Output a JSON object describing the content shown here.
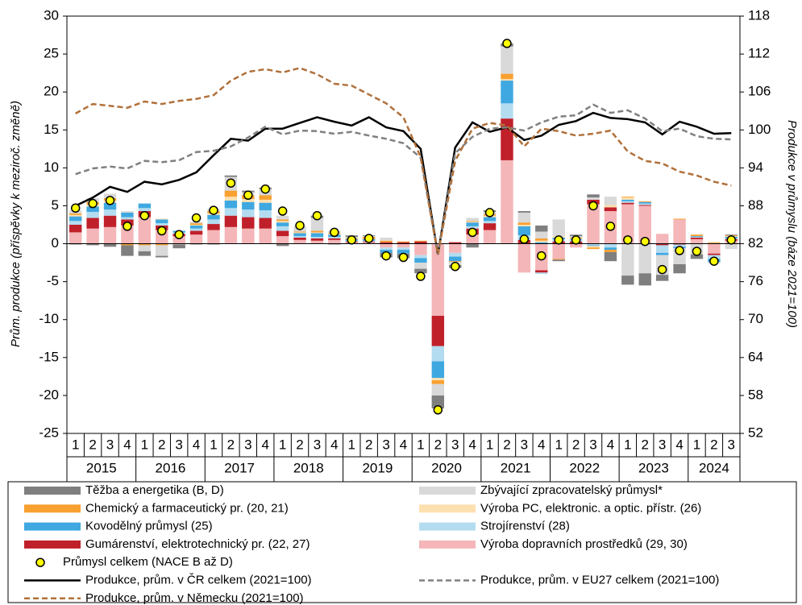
{
  "chart_data": {
    "type": "bar",
    "y_label": "Prům. produkce (příspěvky  k meziroč. změně)",
    "y2_label": "Produkce v průmyslu (báze 2021=100)",
    "categories": [
      "1",
      "2",
      "3",
      "4",
      "1",
      "2",
      "3",
      "4",
      "1",
      "2",
      "3",
      "4",
      "1",
      "2",
      "3",
      "4",
      "1",
      "2",
      "3",
      "4",
      "1",
      "2",
      "3",
      "4",
      "1",
      "2",
      "3",
      "4",
      "1",
      "2",
      "3",
      "4",
      "1",
      "2",
      "3",
      "4",
      "1",
      "2",
      "3"
    ],
    "years": [
      "2015",
      "2016",
      "2017",
      "2018",
      "2019",
      "2020",
      "2021",
      "2022",
      "2023",
      "2024"
    ],
    "ylim": [
      -25,
      30
    ],
    "yticks": [
      -25,
      -20,
      -15,
      -10,
      -5,
      0,
      5,
      10,
      15,
      20,
      25,
      30
    ],
    "y2lim": [
      52,
      118
    ],
    "y2ticks": [
      52,
      58,
      64,
      70,
      76,
      82,
      88,
      94,
      100,
      106,
      112,
      118
    ],
    "series": [
      {
        "name": "Těžba a energetika (B, D)",
        "type": "bar",
        "color": "#7f7f7f",
        "values": [
          -0.1,
          -0.2,
          -0.4,
          -1.4,
          -0.6,
          -0.2,
          -0.5,
          -0.1,
          -0.1,
          0.2,
          0.2,
          0.2,
          -0.3,
          0,
          0.3,
          -0.1,
          0.2,
          0.1,
          -0.6,
          -0.6,
          -0.6,
          -1.7,
          -0.4,
          -0.5,
          0.2,
          0.4,
          0.2,
          0.8,
          -0.2,
          0.2,
          0.4,
          -1.2,
          -1.2,
          -1.6,
          -0.8,
          -1.2,
          -0.6,
          0,
          0.1
        ]
      },
      {
        "name": "Zbývající zpracovatelský průmysl*",
        "type": "bar",
        "color": "#d9d9d9",
        "values": [
          0.4,
          0.5,
          0.6,
          0.2,
          -0.8,
          -1.4,
          -0.1,
          0.2,
          0.3,
          1.8,
          0.4,
          0.8,
          0.5,
          0.7,
          1.7,
          0.3,
          0.2,
          0.1,
          0.4,
          0,
          -0.8,
          -1.5,
          -0.4,
          0.4,
          0.3,
          3.6,
          1.3,
          0.9,
          2.2,
          0.2,
          0.3,
          1.1,
          -4.2,
          -3.9,
          -2.6,
          -2.1,
          -1.4,
          -0.2,
          -0.7
        ]
      },
      {
        "name": "Chemický a farmaceutický pr. (20, 21)",
        "type": "bar",
        "color": "#f8a030",
        "values": [
          0.2,
          0.3,
          0.3,
          -0.2,
          -0.2,
          -0.2,
          0,
          0.2,
          0.3,
          0.8,
          0.5,
          0.6,
          0.2,
          0.1,
          0.2,
          0.1,
          0.1,
          0.3,
          0.2,
          0.1,
          0.1,
          -0.5,
          -0.1,
          0.1,
          0.2,
          0.7,
          0.3,
          0.3,
          -0.1,
          0.1,
          -0.2,
          -0.3,
          0.1,
          0.1,
          0,
          0.1,
          0.2,
          0.1,
          0.1
        ]
      },
      {
        "name": "Výroba PC, elektronic. a optic. přístr. (26)",
        "type": "bar",
        "color": "#fde0b0",
        "values": [
          0.2,
          0.3,
          0.3,
          0,
          0,
          0.1,
          0,
          0.1,
          0.2,
          0.5,
          0.4,
          0.4,
          0.2,
          0.1,
          0.1,
          0.1,
          0,
          0,
          0,
          0,
          0,
          -0.3,
          0,
          0.1,
          0.2,
          0.2,
          0.2,
          0.2,
          0.2,
          0.1,
          -0.2,
          0.3,
          0.3,
          0,
          0,
          0,
          0,
          0.1,
          0.1
        ]
      },
      {
        "name": "Kovodělný průmysl (25)",
        "type": "bar",
        "color": "#3fa8e0",
        "values": [
          0.6,
          0.7,
          0.9,
          0.6,
          0.6,
          0.5,
          0.2,
          0.4,
          0.6,
          1,
          1,
          1,
          0.5,
          0.4,
          0.5,
          0.3,
          0.2,
          0.2,
          -0.4,
          -0.5,
          -0.6,
          -2.2,
          -0.6,
          0.5,
          0.5,
          3,
          1.2,
          0.2,
          0.2,
          0.1,
          -0.1,
          -0.3,
          0.2,
          0.2,
          -0.3,
          -0.2,
          0.1,
          -0.4,
          0.2
        ]
      },
      {
        "name": "Strojírenství (28)",
        "type": "bar",
        "color": "#b4dcf0",
        "values": [
          0.5,
          0.8,
          0.8,
          0.3,
          0.4,
          0.3,
          0.2,
          0.3,
          0.6,
          1,
          1,
          1,
          0.6,
          0.2,
          0.2,
          0.2,
          0.1,
          0.1,
          -0.3,
          -0.3,
          -0.4,
          -2,
          -0.5,
          0.3,
          0.3,
          2,
          0.6,
          -0.2,
          0.3,
          0.2,
          -0.2,
          -0.5,
          0.2,
          0.2,
          -1,
          -0.3,
          0.1,
          -0.5,
          0.1
        ]
      },
      {
        "name": "Gumárenství, elektrotechnický pr. (22, 27)",
        "type": "bar",
        "color": "#c0202a",
        "values": [
          1,
          1.4,
          1.5,
          0.8,
          0.8,
          0.6,
          0.3,
          0.5,
          0.8,
          1.5,
          1.5,
          1.4,
          0.7,
          0.3,
          0.3,
          0.2,
          0.1,
          0.1,
          0.2,
          0.2,
          0.3,
          -4,
          0.2,
          0.8,
          0.9,
          5.5,
          0.5,
          -0.3,
          0.3,
          0.3,
          0.6,
          0.5,
          0.2,
          0.1,
          -0.2,
          -0.1,
          0.2,
          -0.2,
          0.2
        ]
      },
      {
        "name": "Výroba dopravních prostředků (29, 30)",
        "type": "bar",
        "color": "#f4b6b8",
        "values": [
          1.5,
          2,
          2.2,
          2.4,
          3.5,
          1.8,
          1,
          1.2,
          1.8,
          2.2,
          2,
          2,
          1,
          0.5,
          0.4,
          0.5,
          0.2,
          0.2,
          -0.5,
          -0.5,
          -1.5,
          -9.5,
          -1.2,
          1.2,
          1.8,
          11,
          -3.8,
          -3.5,
          -2,
          -0.5,
          5.2,
          4.3,
          5.2,
          5,
          1.3,
          3.2,
          0.6,
          -1.3,
          0.4
        ]
      },
      {
        "name": "Průmysl celkem (NACE B až D)",
        "type": "scatter",
        "color": "#ffff00",
        "values": [
          4.7,
          5.3,
          5.7,
          2.3,
          3.7,
          1.7,
          1.2,
          3.4,
          4.4,
          8,
          6.4,
          7.2,
          4.3,
          2.4,
          3.7,
          1.5,
          0.5,
          0.7,
          -1.6,
          -1.8,
          -4.3,
          -21.9,
          -3,
          1.5,
          4.1,
          26.4,
          0.6,
          -1.6,
          0.5,
          0.5,
          5,
          2.3,
          0.5,
          0.3,
          -3.4,
          -0.9,
          -1,
          -2.3,
          0.5
        ]
      },
      {
        "name": "Produkce, prům. v ČR celkem (2021=100)",
        "type": "line",
        "axis": "y2",
        "color": "#000000",
        "dashed": false,
        "values": [
          88,
          89.3,
          91,
          90.2,
          91.8,
          91.4,
          92.1,
          93.3,
          96,
          98.6,
          98.3,
          100.2,
          100.2,
          101.1,
          102,
          101.3,
          100.7,
          102,
          100.4,
          99.8,
          97,
          80.3,
          97.2,
          101.2,
          99.7,
          100.4,
          98.4,
          99.1,
          100.8,
          101.4,
          102.7,
          101.9,
          101.7,
          101.2,
          99.3,
          101.3,
          100.5,
          99.4,
          99.5
        ]
      },
      {
        "name": "Produkce, prům. v EU27 celkem (2021=100)",
        "type": "line",
        "axis": "y2",
        "color": "#808080",
        "dashed": true,
        "values": [
          93,
          93.9,
          94.2,
          93.9,
          95.1,
          94.9,
          95.2,
          96.5,
          96.7,
          97.4,
          98.8,
          100.5,
          99.3,
          99.9,
          99.8,
          99.4,
          99.7,
          99.1,
          98.6,
          97.9,
          95.6,
          80.3,
          96.3,
          98.9,
          100.2,
          100.4,
          99.9,
          101.2,
          102.1,
          102.3,
          104,
          102.7,
          103.1,
          101.8,
          99.8,
          100.2,
          99,
          98.6,
          98.5
        ]
      },
      {
        "name": "Produkce, prům. v Německu (2021=100)",
        "type": "line",
        "axis": "y2",
        "color": "#b0703a",
        "dashed": true,
        "values": [
          102.6,
          104.1,
          103.8,
          103.5,
          104.5,
          104.1,
          104.6,
          104.9,
          105.5,
          107.8,
          109.2,
          109.6,
          109.1,
          109.8,
          108.8,
          107.3,
          107,
          105.6,
          104.2,
          102,
          95.7,
          80.3,
          95.1,
          100.2,
          101.1,
          100.7,
          97.4,
          100.2,
          99.8,
          99.1,
          99.4,
          99.9,
          96.6,
          95.1,
          94.7,
          93.4,
          92.8,
          91.8,
          91.2
        ]
      }
    ]
  }
}
